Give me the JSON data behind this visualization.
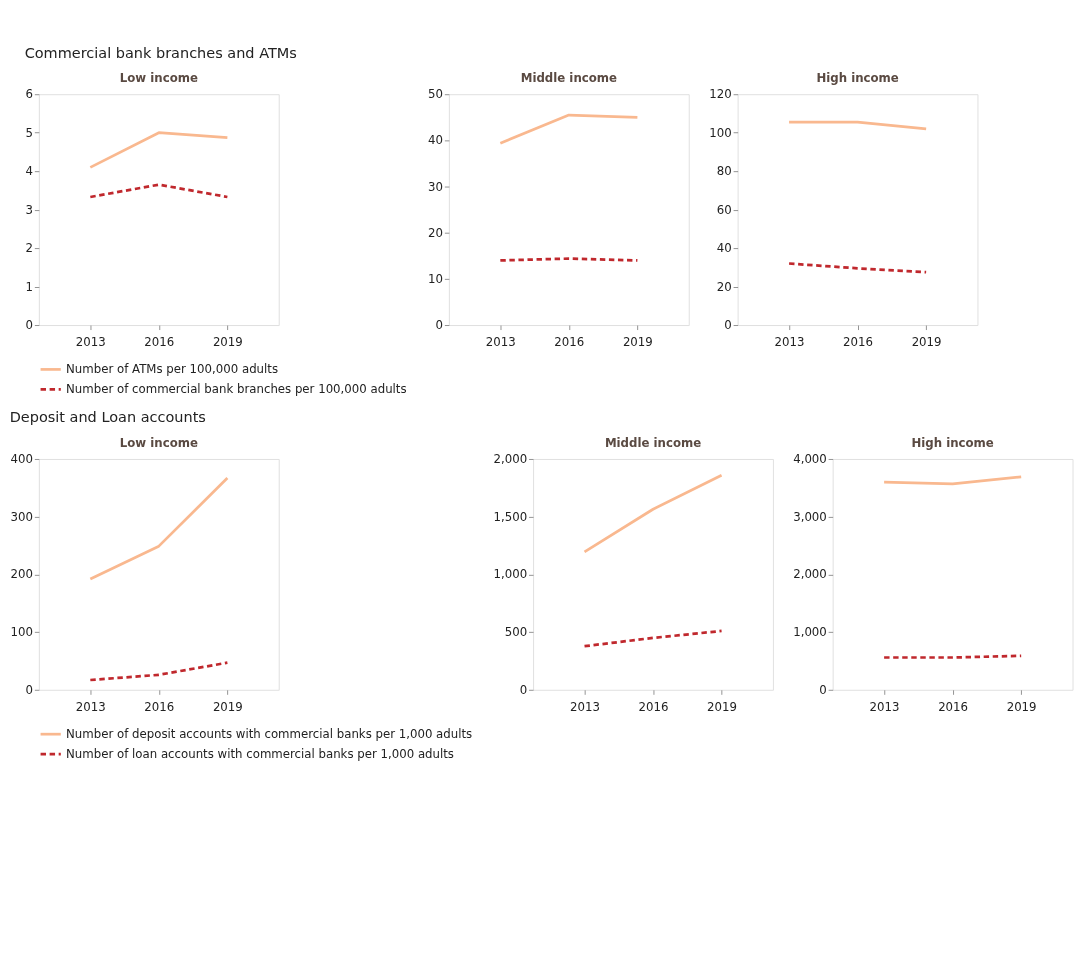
{
  "chart_data": [
    {
      "type": "line",
      "title": "Low income",
      "annotations": [
        "Commercial bank branches and ATMs"
      ],
      "categories": [
        "2013",
        "2016",
        "2019"
      ],
      "ylim": [
        0,
        6
      ],
      "yticks": [
        0,
        1,
        2,
        3,
        4,
        5,
        6
      ],
      "grid": false,
      "legend": "bottom",
      "series": [
        {
          "name": "Number of ATMs per 100,000 adults",
          "color": "#f9b88f",
          "line_style": "solid",
          "values": [
            4.1,
            5.0,
            4.87
          ]
        },
        {
          "name": "Number of commercial bank branches per 100,000 adults",
          "color": "#c0282d",
          "line_style": "dashed",
          "values": [
            3.33,
            3.65,
            3.33
          ]
        }
      ]
    },
    {
      "type": "line",
      "title": "Middle income",
      "categories": [
        "2013",
        "2016",
        "2019"
      ],
      "ylim": [
        0,
        50
      ],
      "yticks": [
        0,
        10,
        20,
        30,
        40,
        50
      ],
      "grid": false,
      "series": [
        {
          "color": "#f9b88f",
          "line_style": "solid",
          "values": [
            39.4,
            45.5,
            45.0
          ]
        },
        {
          "color": "#c0282d",
          "line_style": "dashed",
          "values": [
            14.0,
            14.4,
            14.0
          ]
        }
      ]
    },
    {
      "type": "line",
      "title": "High income",
      "categories": [
        "2013",
        "2016",
        "2019"
      ],
      "ylim": [
        0,
        120
      ],
      "yticks": [
        0,
        20,
        40,
        60,
        80,
        100,
        120
      ],
      "grid": false,
      "series": [
        {
          "color": "#f9b88f",
          "line_style": "solid",
          "values": [
            105.5,
            105.5,
            102
          ]
        },
        {
          "color": "#c0282d",
          "line_style": "dashed",
          "values": [
            32,
            29.5,
            27.5
          ]
        }
      ]
    },
    {
      "type": "line",
      "title": "Low income",
      "annotations": [
        "Deposit and Loan accounts"
      ],
      "categories": [
        "2013",
        "2016",
        "2019"
      ],
      "ylim": [
        0,
        400
      ],
      "yticks": [
        0,
        100,
        200,
        300,
        400
      ],
      "grid": false,
      "legend": "bottom",
      "series": [
        {
          "name": "Number of deposit accounts with commercial banks per 1,000 adults",
          "color": "#f9b88f",
          "line_style": "solid",
          "values": [
            192,
            249,
            367
          ]
        },
        {
          "name": "Number of loan accounts with commercial banks per 1,000 adults",
          "color": "#c0282d",
          "line_style": "dashed",
          "values": [
            17,
            26,
            47
          ]
        }
      ]
    },
    {
      "type": "line",
      "title": "Middle income",
      "categories": [
        "2013",
        "2016",
        "2019"
      ],
      "ylim": [
        0,
        2000
      ],
      "yticks": [
        0,
        500,
        {
          "value": 1000,
          "label": "1,000"
        },
        {
          "value": 1500,
          "label": "1,500"
        },
        {
          "value": 2000,
          "label": "2,000"
        }
      ],
      "grid": false,
      "series": [
        {
          "color": "#f9b88f",
          "line_style": "solid",
          "values": [
            1195,
            1565,
            1860
          ]
        },
        {
          "color": "#c0282d",
          "line_style": "dashed",
          "values": [
            378,
            450,
            510
          ]
        }
      ]
    },
    {
      "type": "line",
      "title": "High income",
      "categories": [
        "2013",
        "2016",
        "2019"
      ],
      "ylim": [
        0,
        4000
      ],
      "yticks": [
        0,
        {
          "value": 1000,
          "label": "1,000"
        },
        {
          "value": 2000,
          "label": "2,000"
        },
        {
          "value": 3000,
          "label": "3,000"
        },
        {
          "value": 4000,
          "label": "4,000"
        }
      ],
      "grid": false,
      "series": [
        {
          "color": "#f9b88f",
          "line_style": "solid",
          "values": [
            3600,
            3570,
            3690
          ]
        },
        {
          "color": "#c0282d",
          "line_style": "dashed",
          "values": [
            560,
            560,
            590
          ]
        }
      ]
    }
  ]
}
